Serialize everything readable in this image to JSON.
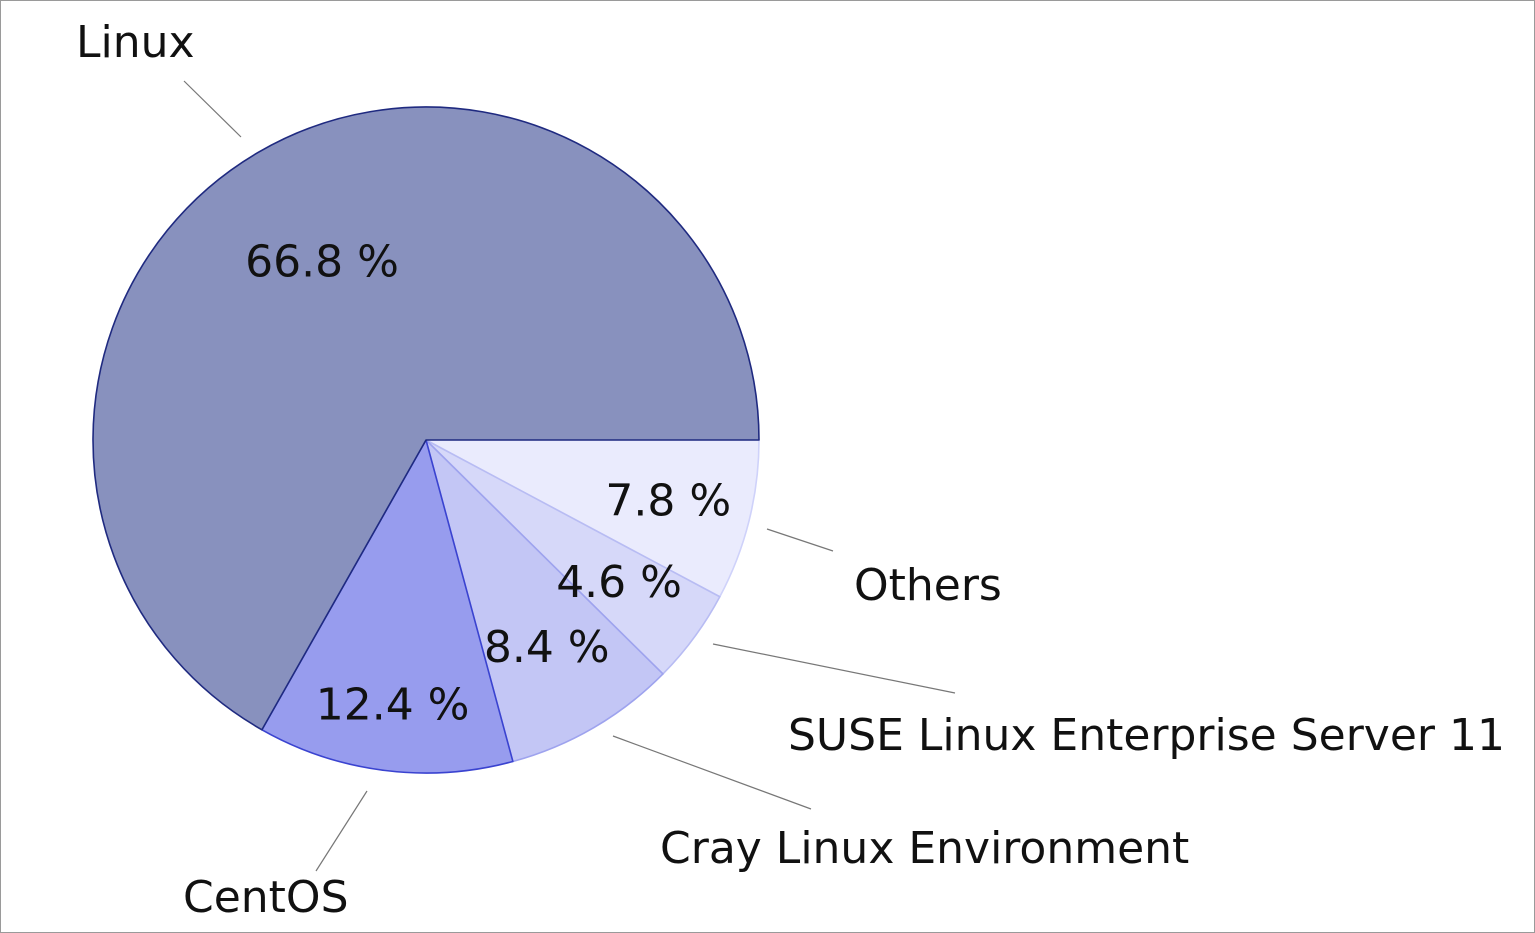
{
  "chart_data": {
    "type": "pie",
    "slices": [
      {
        "name": "Linux",
        "value": 66.8,
        "label": "66.8 %",
        "color": "#8891be",
        "stroke": "#1f2a80"
      },
      {
        "name": "CentOS",
        "value": 12.4,
        "label": "12.4 %",
        "color": "#979cee",
        "stroke": "#3a43d0"
      },
      {
        "name": "Cray Linux Environment",
        "value": 8.4,
        "label": "8.4 %",
        "color": "#c3c6f5",
        "stroke": "#9ea3ee"
      },
      {
        "name": "SUSE Linux Enterprise Server 11",
        "value": 4.6,
        "label": "4.6 %",
        "color": "#d6d8f9",
        "stroke": "#b8bcf3"
      },
      {
        "name": "Others",
        "value": 7.8,
        "label": "7.8 %",
        "color": "#eaebfd",
        "stroke": "#cfd2fa"
      }
    ],
    "start": "right",
    "direction": "clockwise",
    "legend": "none"
  }
}
